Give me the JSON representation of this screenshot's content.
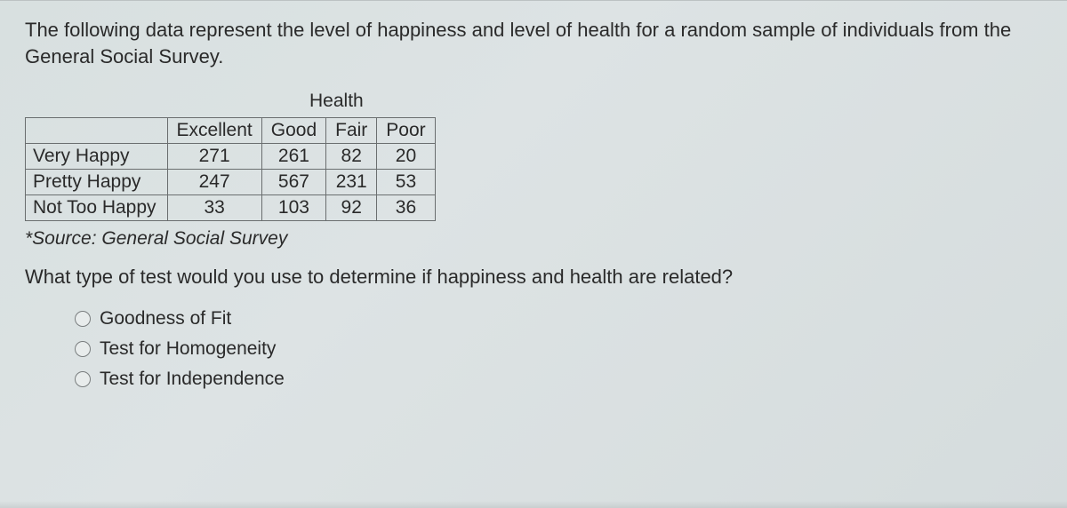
{
  "intro": "The following data represent the level of happiness and level of health for a random sample of individuals from the General Social Survey.",
  "table": {
    "title": "Health",
    "columns": [
      "Excellent",
      "Good",
      "Fair",
      "Poor"
    ],
    "rows": [
      {
        "label": "Very Happy",
        "values": [
          271,
          261,
          82,
          20
        ]
      },
      {
        "label": "Pretty Happy",
        "values": [
          247,
          567,
          231,
          53
        ]
      },
      {
        "label": "Not Too Happy",
        "values": [
          33,
          103,
          92,
          36
        ]
      }
    ],
    "border_color": "#6a6e6f",
    "font_size_pt": 16
  },
  "source": "*Source: General Social Survey",
  "question": "What type of test would you use to determine if happiness and health are related?",
  "options": [
    "Goodness of Fit",
    "Test for Homogeneity",
    "Test for Independence"
  ],
  "colors": {
    "background_top": "#d8e0e0",
    "background_mid": "#dde3e4",
    "background_bottom": "#d5dcdd",
    "text": "#2a2a2a",
    "radio_border": "#7a7e7f"
  }
}
